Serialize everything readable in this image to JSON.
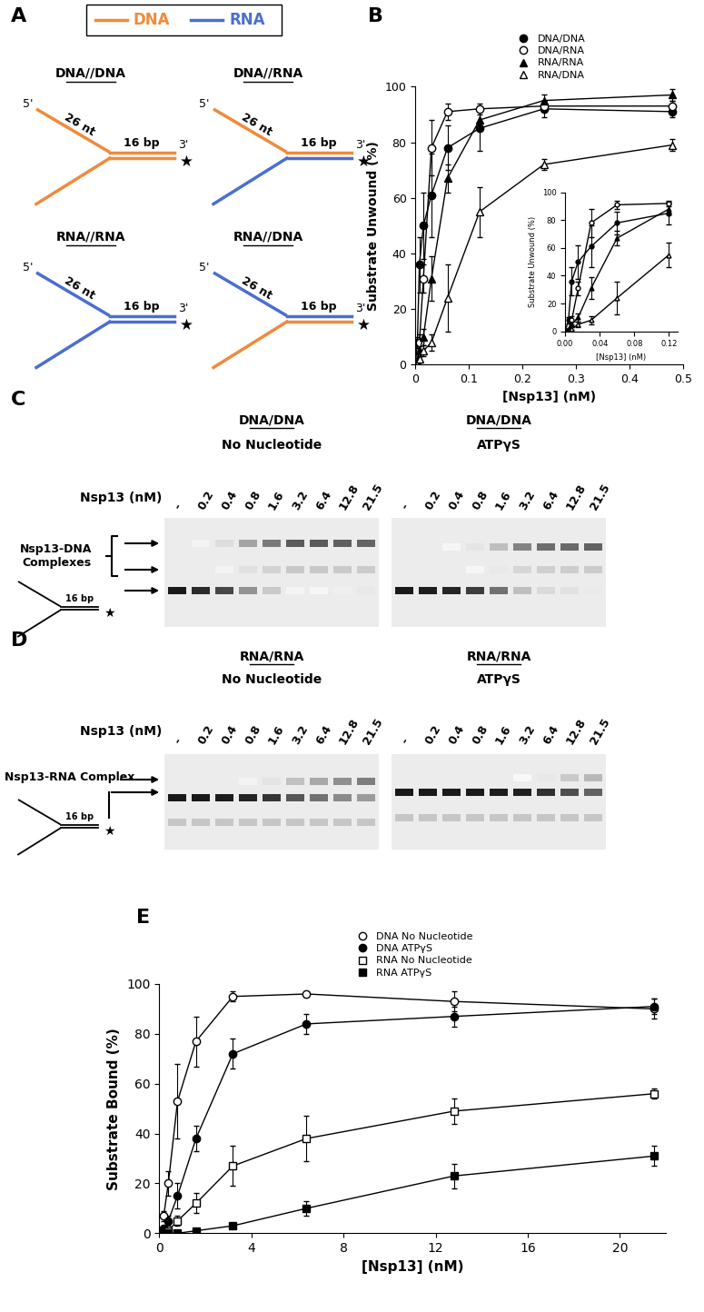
{
  "panel_labels": [
    "A",
    "B",
    "C",
    "D",
    "E"
  ],
  "diagram": {
    "legend": [
      {
        "name": "DNA",
        "color": "#f08a3c"
      },
      {
        "name": "RNA",
        "color": "#4a6fd0"
      }
    ],
    "substrates": [
      {
        "title": "DNA//DNA",
        "top": "DNA",
        "bottom": "DNA"
      },
      {
        "title": "DNA//RNA",
        "top": "DNA",
        "bottom": "RNA"
      },
      {
        "title": "RNA//RNA",
        "top": "RNA",
        "bottom": "RNA"
      },
      {
        "title": "RNA//DNA",
        "top": "RNA",
        "bottom": "DNA"
      }
    ],
    "five_prime": "5'",
    "three_prime": "3'",
    "arm_label": "26 nt",
    "duplex_label": "16 bp",
    "label_mark": "★"
  },
  "chart_data": [
    {
      "type": "line",
      "xlabel": "[Nsp13] (nM)",
      "ylabel": "Substrate Unwound (%)",
      "x": [
        0,
        0.0038,
        0.0075,
        0.015,
        0.03,
        0.06,
        0.12,
        0.24,
        0.48
      ],
      "xlim": [
        0,
        0.5
      ],
      "xticks": [
        0,
        0.1,
        0.2,
        0.3,
        0.4,
        0.5
      ],
      "ylim": [
        0,
        100
      ],
      "yticks": [
        0,
        20,
        40,
        60,
        80,
        100
      ],
      "grid": false,
      "legend": "lower center",
      "line_style": "solid",
      "series": [
        {
          "name": "DNA/DNA",
          "color": "#000000",
          "marker": "circle",
          "values": [
            0,
            8,
            36,
            50,
            61,
            78,
            85,
            92,
            91
          ],
          "errors": [
            0,
            2,
            10,
            12,
            15,
            8,
            8,
            3,
            2
          ]
        },
        {
          "name": "DNA/RNA",
          "color": "#000000",
          "marker": "open circle",
          "values": [
            0,
            1,
            8,
            31,
            78,
            91,
            92,
            93,
            93
          ],
          "errors": [
            0,
            1,
            3,
            5,
            10,
            3,
            2,
            2,
            2
          ]
        },
        {
          "name": "RNA/RNA",
          "color": "#000000",
          "marker": "triangle",
          "values": [
            0,
            1,
            5,
            10,
            31,
            67,
            88,
            95,
            97
          ],
          "errors": [
            0,
            1,
            2,
            3,
            8,
            5,
            4,
            2,
            2
          ]
        },
        {
          "name": "RNA/DNA",
          "color": "#000000",
          "marker": "open triangle",
          "values": [
            0,
            0,
            2,
            5,
            8,
            24,
            55,
            72,
            79
          ],
          "errors": [
            0,
            0,
            1,
            2,
            3,
            12,
            9,
            2,
            2
          ]
        }
      ]
    },
    {
      "type": "line",
      "xlabel": "[Nsp13] (nM)",
      "ylabel": "Substrate Unwound (%)",
      "x": [
        0,
        0.0038,
        0.0075,
        0.015,
        0.03,
        0.06,
        0.12
      ],
      "xlim": [
        0,
        0.13
      ],
      "xticks": [
        {
          "value": 0,
          "label": "0.00"
        },
        0.04,
        0.08,
        0.12
      ],
      "ylim": [
        0,
        100
      ],
      "yticks": [
        0,
        20,
        40,
        60,
        80,
        100
      ],
      "grid": false,
      "line_style": "solid",
      "series": [
        {
          "color": "#000000",
          "marker": "circle",
          "values": [
            0,
            8,
            36,
            50,
            61,
            78,
            85
          ],
          "errors": [
            0,
            2,
            10,
            12,
            15,
            8,
            8
          ]
        },
        {
          "color": "#000000",
          "marker": "open circle",
          "values": [
            0,
            1,
            8,
            31,
            78,
            91,
            92
          ],
          "errors": [
            0,
            1,
            3,
            5,
            10,
            3,
            2
          ]
        },
        {
          "color": "#000000",
          "marker": "triangle",
          "values": [
            0,
            1,
            5,
            10,
            31,
            67,
            88
          ],
          "errors": [
            0,
            1,
            2,
            3,
            8,
            5,
            4
          ]
        },
        {
          "color": "#000000",
          "marker": "open triangle",
          "values": [
            0,
            0,
            2,
            5,
            8,
            24,
            55
          ],
          "errors": [
            0,
            0,
            1,
            2,
            3,
            12,
            9
          ]
        }
      ]
    },
    {
      "type": "line",
      "xlabel": "[Nsp13] (nM)",
      "ylabel": "Substrate Bound (%)",
      "x": [
        0.2,
        0.4,
        0.8,
        1.6,
        3.2,
        6.4,
        12.8,
        21.5
      ],
      "xlim": [
        0,
        22
      ],
      "xticks": [
        0,
        4,
        8,
        12,
        16,
        20
      ],
      "ylim": [
        0,
        100
      ],
      "yticks": [
        0,
        20,
        40,
        60,
        80,
        100
      ],
      "grid": false,
      "legend": "lower center",
      "line_style": "solid",
      "series": [
        {
          "name": "DNA No Nucleotide",
          "color": "#000000",
          "marker": "open circle",
          "values": [
            7,
            20,
            53,
            77,
            95,
            96,
            93,
            90
          ],
          "errors": [
            2,
            5,
            15,
            10,
            2,
            1,
            4,
            4
          ]
        },
        {
          "name": "DNA ATPγS",
          "color": "#000000",
          "marker": "circle",
          "values": [
            2,
            5,
            15,
            38,
            72,
            84,
            87,
            91
          ],
          "errors": [
            1,
            2,
            5,
            5,
            6,
            4,
            4,
            3
          ]
        },
        {
          "name": "RNA No Nucleotide",
          "color": "#000000",
          "marker": "open square",
          "values": [
            0,
            1,
            5,
            12,
            27,
            38,
            49,
            56
          ],
          "errors": [
            0,
            1,
            2,
            4,
            8,
            9,
            5,
            2
          ]
        },
        {
          "name": "RNA ATPγS",
          "color": "#000000",
          "marker": "square",
          "values": [
            0,
            0,
            0,
            1,
            3,
            10,
            23,
            31
          ],
          "errors": [
            0,
            0,
            0,
            1,
            1,
            3,
            5,
            4
          ]
        }
      ]
    }
  ],
  "gels": [
    {
      "lanes_label": "Nsp13 (nM)",
      "lanes": [
        "-",
        "0.2",
        "0.4",
        "0.8",
        "1.6",
        "3.2",
        "6.4",
        "12.8",
        "21.5"
      ],
      "gels": [
        {
          "title": "DNA/DNA",
          "condition": "No Nucleotide"
        },
        {
          "title": "DNA/DNA",
          "condition": "ATPγS"
        }
      ],
      "complex_label": "Nsp13-DNA Complexes",
      "duplex_label": "16 bp",
      "label_mark": "★"
    },
    {
      "lanes_label": "Nsp13 (nM)",
      "lanes": [
        "-",
        "0.2",
        "0.4",
        "0.8",
        "1.6",
        "3.2",
        "6.4",
        "12.8",
        "21.5"
      ],
      "gels": [
        {
          "title": "RNA/RNA",
          "condition": "No Nucleotide"
        },
        {
          "title": "RNA/RNA",
          "condition": "ATPγS"
        }
      ],
      "complex_label": "Nsp13-RNA Complex",
      "duplex_label": "16 bp",
      "label_mark": "★"
    }
  ]
}
